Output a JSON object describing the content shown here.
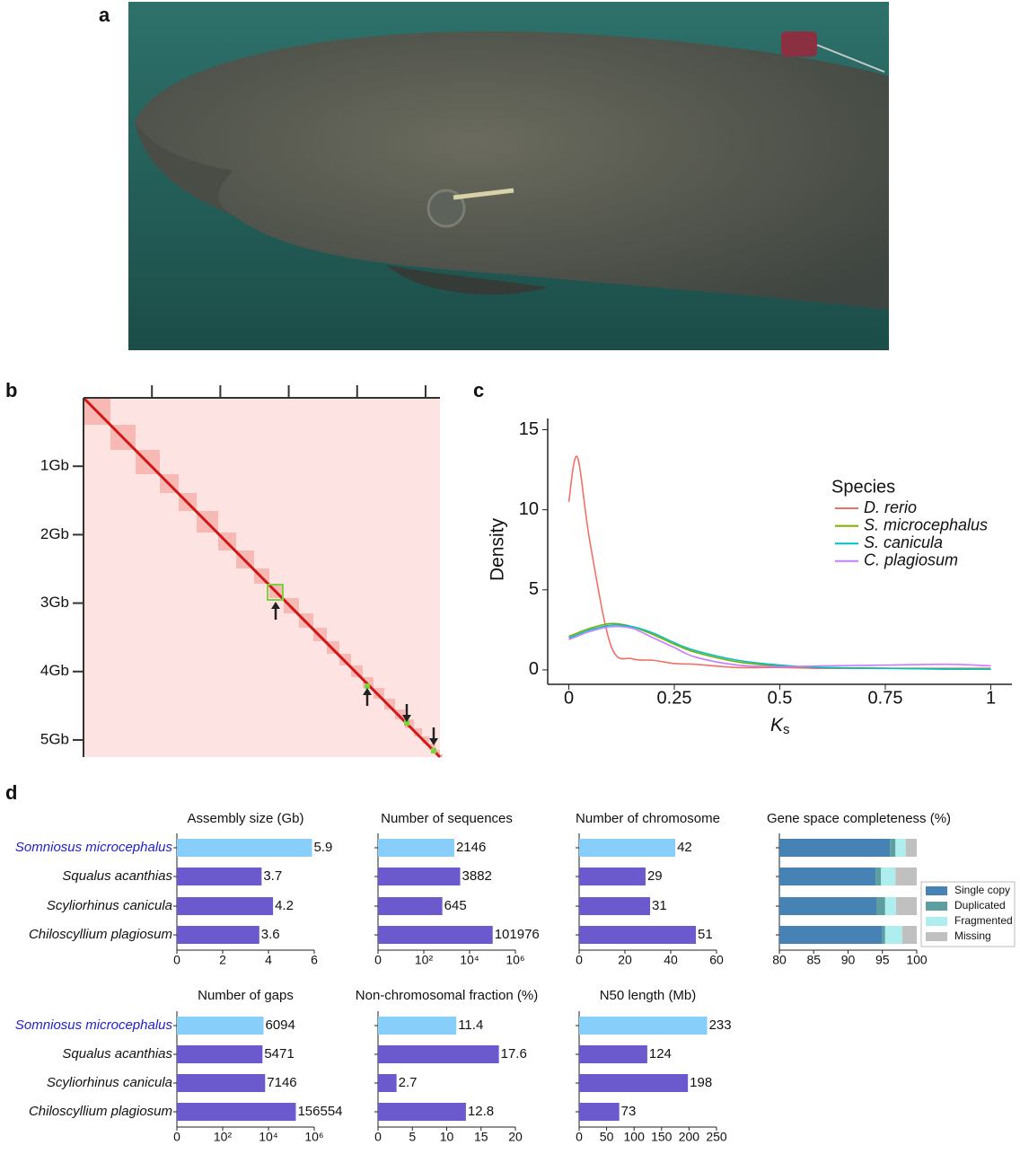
{
  "panel_labels": [
    "a",
    "b",
    "c",
    "d"
  ],
  "species": {
    "names": [
      "Somniosus microcephalus",
      "Squalus acanthias",
      "Scyliorhinus canicula",
      "Chiloscyllium plagiosum"
    ],
    "colors": [
      "#2222cc",
      "#111111",
      "#111111",
      "#111111"
    ]
  },
  "chart_data": [
    {
      "type": "heatmap",
      "ylim": [
        0,
        5.25
      ],
      "yticks": [
        {
          "value": 1,
          "label": "1Gb"
        },
        {
          "value": 2,
          "label": "2Gb"
        },
        {
          "value": 3,
          "label": "3Gb"
        },
        {
          "value": 4,
          "label": "4Gb"
        },
        {
          "value": 5,
          "label": "5Gb"
        }
      ]
    },
    {
      "type": "line",
      "y_label": "Density",
      "x_label": [
        "K",
        "s"
      ],
      "legend_title": "Species",
      "xlim": [
        -0.05,
        1.05
      ],
      "ylim": [
        -0.9,
        15.7
      ],
      "xticks": [
        0,
        0.25,
        0.5,
        0.75,
        1
      ],
      "yticks": [
        0,
        5,
        10,
        15
      ],
      "x": [
        0,
        0.02,
        0.05,
        0.1,
        0.15,
        0.2,
        0.25,
        0.3,
        0.4,
        0.5,
        0.6,
        0.75,
        0.9,
        1
      ],
      "series": [
        {
          "name": "D. rerio",
          "color": "#f07167",
          "values": [
            10.5,
            13.3,
            8,
            1.5,
            0.7,
            0.6,
            0.4,
            0.35,
            0.15,
            0.15,
            0.1,
            0.1,
            0.1,
            0.1
          ]
        },
        {
          "name": "S. microcephalus",
          "color": "#7cae00",
          "values": [
            2.1,
            2.3,
            2.6,
            2.9,
            2.7,
            2.2,
            1.6,
            1.1,
            0.5,
            0.25,
            0.15,
            0.1,
            0.05,
            0.05
          ]
        },
        {
          "name": "S. canicula",
          "color": "#00bfc4",
          "values": [
            2.0,
            2.2,
            2.5,
            2.8,
            2.7,
            2.3,
            1.7,
            1.2,
            0.6,
            0.3,
            0.15,
            0.1,
            0.05,
            0.05
          ]
        },
        {
          "name": "C. plagiosum",
          "color": "#c77cff",
          "values": [
            1.9,
            2.1,
            2.4,
            2.7,
            2.6,
            2.0,
            1.4,
            0.8,
            0.3,
            0.2,
            0.25,
            0.3,
            0.35,
            0.25
          ]
        }
      ]
    },
    {
      "type": "bar",
      "title": "Assembly size (Gb)",
      "values": [
        5.9,
        3.7,
        4.2,
        3.6
      ],
      "colors": [
        "#87cefa",
        "#6a5acd",
        "#6a5acd",
        "#6a5acd"
      ],
      "xlim": [
        0,
        6
      ],
      "xticks": [
        0,
        2,
        4,
        6
      ]
    },
    {
      "type": "bar",
      "title": "Number of sequences",
      "values": [
        2146,
        3882,
        645,
        101976
      ],
      "colors": [
        "#87cefa",
        "#6a5acd",
        "#6a5acd",
        "#6a5acd"
      ],
      "log_scale": true,
      "xlim": [
        1,
        1000000
      ],
      "xticks": [
        {
          "value": 1,
          "label": "0"
        },
        {
          "value": 100,
          "label": "10²"
        },
        {
          "value": 10000,
          "label": "10⁴"
        },
        {
          "value": 1000000,
          "label": "10⁶"
        }
      ]
    },
    {
      "type": "bar",
      "title": "Number of chromosome",
      "values": [
        42,
        29,
        31,
        51
      ],
      "colors": [
        "#87cefa",
        "#6a5acd",
        "#6a5acd",
        "#6a5acd"
      ],
      "xlim": [
        0,
        60
      ],
      "xticks": [
        0,
        20,
        40,
        60
      ]
    },
    {
      "type": "stacked_bar",
      "title": "Gene space completeness (%)",
      "xlim": [
        80,
        100
      ],
      "xticks": [
        80,
        85,
        90,
        95,
        100
      ],
      "legend": "right",
      "series": [
        {
          "name": "Single copy",
          "color": "#4682b4",
          "values": [
            96.1,
            94.0,
            94.2,
            95.0
          ]
        },
        {
          "name": "Duplicated",
          "color": "#5f9ea0",
          "values": [
            0.8,
            0.8,
            1.2,
            0.4
          ]
        },
        {
          "name": "Fragmented",
          "color": "#afeeee",
          "values": [
            1.5,
            2.1,
            1.6,
            2.5
          ]
        },
        {
          "name": "Missing",
          "color": "#c0c0c0",
          "values": [
            1.6,
            3.1,
            3.0,
            2.1
          ]
        }
      ]
    },
    {
      "type": "bar",
      "title": "Number of gaps",
      "values": [
        6094,
        5471,
        7146,
        156554
      ],
      "colors": [
        "#87cefa",
        "#6a5acd",
        "#6a5acd",
        "#6a5acd"
      ],
      "log_scale": true,
      "xlim": [
        1,
        1000000
      ],
      "xticks": [
        {
          "value": 1,
          "label": "0"
        },
        {
          "value": 100,
          "label": "10²"
        },
        {
          "value": 10000,
          "label": "10⁴"
        },
        {
          "value": 1000000,
          "label": "10⁶"
        }
      ]
    },
    {
      "type": "bar",
      "title": "Non-chromosomal fraction (%)",
      "values": [
        11.4,
        17.6,
        2.7,
        12.8
      ],
      "colors": [
        "#87cefa",
        "#6a5acd",
        "#6a5acd",
        "#6a5acd"
      ],
      "xlim": [
        0,
        20
      ],
      "xticks": [
        0,
        5,
        10,
        15,
        20
      ]
    },
    {
      "type": "bar",
      "title": "N50 length (Mb)",
      "values": [
        233,
        124,
        198,
        73
      ],
      "colors": [
        "#87cefa",
        "#6a5acd",
        "#6a5acd",
        "#6a5acd"
      ],
      "xlim": [
        0,
        250
      ],
      "xticks": [
        0,
        50,
        100,
        150,
        200,
        250
      ]
    }
  ]
}
